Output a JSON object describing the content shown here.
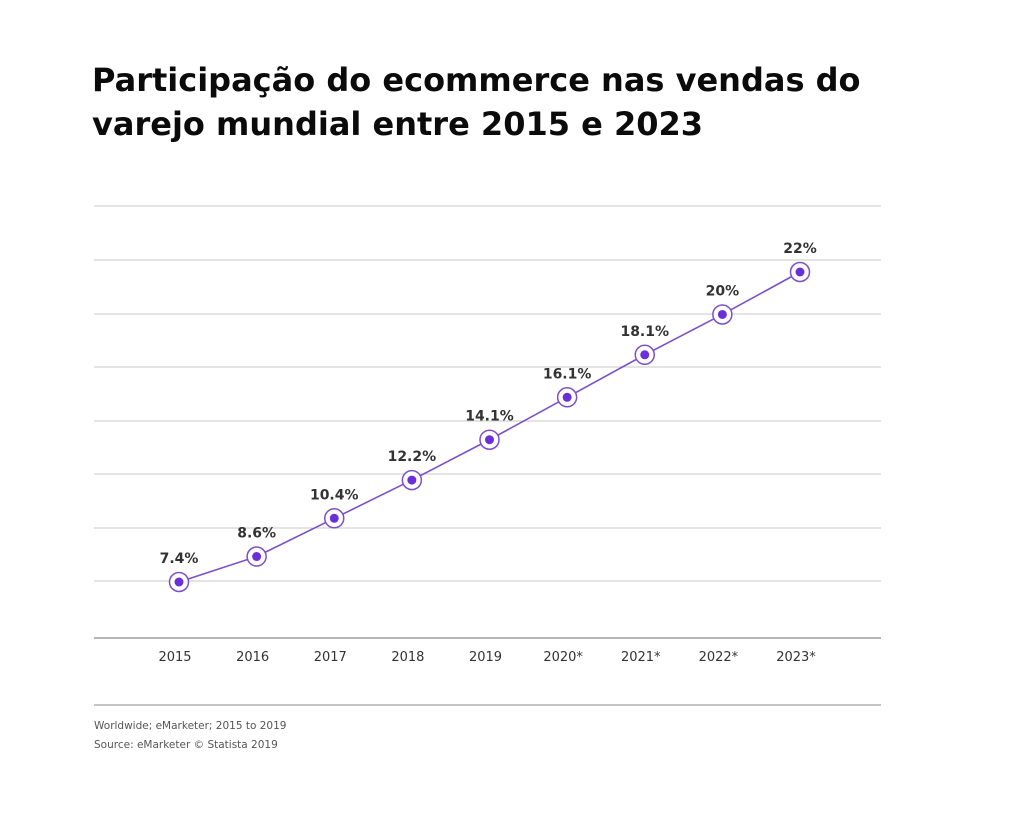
{
  "title": {
    "line1": "Participação do ecommerce nas vendas do",
    "line2": "varejo mundial entre 2015 e 2023"
  },
  "footer": {
    "note": "Worldwide; eMarketer; 2015 to 2019",
    "source": "Source: eMarketer © Statista 2019"
  },
  "colors": {
    "line": "#7b4fc9",
    "marker": "#6a2fd6",
    "grid": "#c9c9c9",
    "label": "#333333"
  },
  "chart_data": {
    "type": "line",
    "title": "Participação do ecommerce nas vendas do varejo mundial entre 2015 e 2023",
    "xlabel": "",
    "ylabel": "",
    "categories": [
      "2015",
      "2016",
      "2017",
      "2018",
      "2019",
      "2020*",
      "2021*",
      "2022*",
      "2023*"
    ],
    "values": [
      7.4,
      8.6,
      10.4,
      12.2,
      14.1,
      16.1,
      18.1,
      20,
      22
    ],
    "data_labels": [
      "7.4%",
      "8.6%",
      "10.4%",
      "12.2%",
      "14.1%",
      "16.1%",
      "18.1%",
      "20%",
      "22%"
    ],
    "ylim": [
      5,
      24.5
    ],
    "grid": true,
    "legend": "none"
  }
}
